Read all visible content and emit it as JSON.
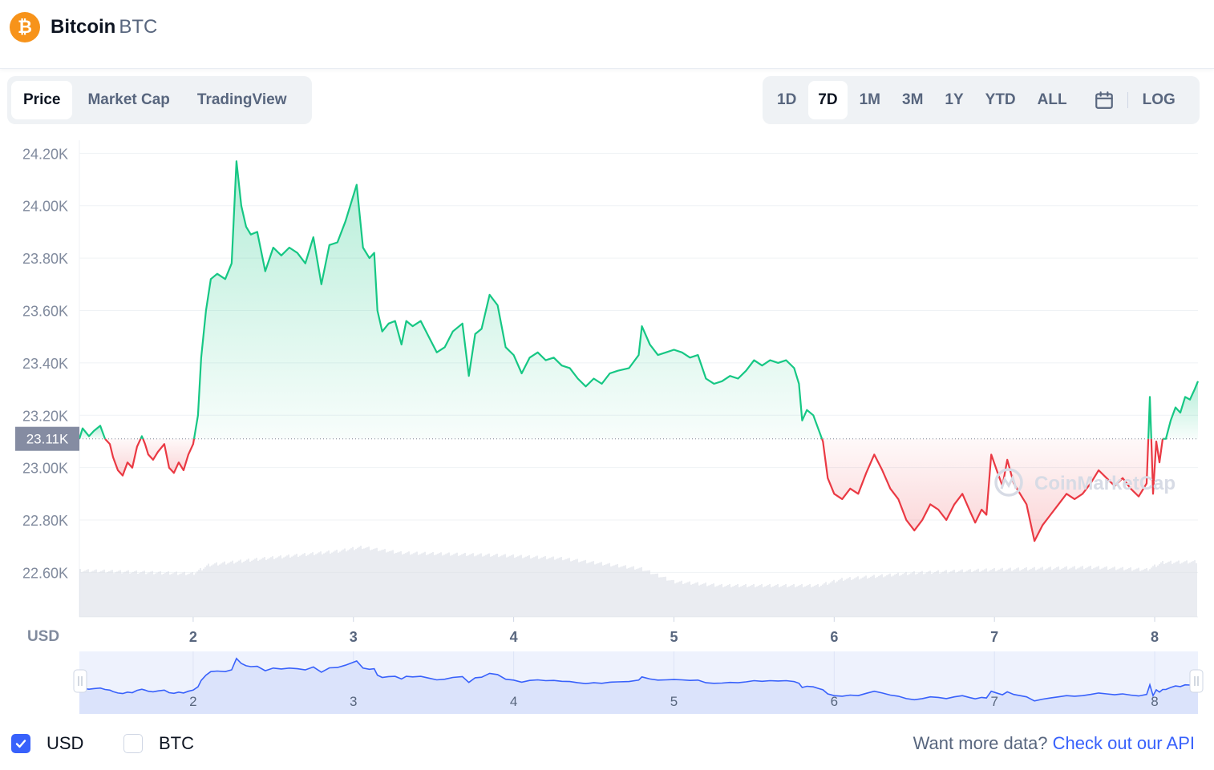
{
  "header": {
    "coin_name": "Bitcoin",
    "coin_symbol": "BTC",
    "logo_icon": "bitcoin-icon",
    "logo_color": "#f7931a"
  },
  "type_tabs": [
    {
      "label": "Price",
      "active": true
    },
    {
      "label": "Market Cap",
      "active": false
    },
    {
      "label": "TradingView",
      "active": false
    }
  ],
  "range_tabs": [
    {
      "label": "1D",
      "active": false
    },
    {
      "label": "7D",
      "active": true
    },
    {
      "label": "1M",
      "active": false
    },
    {
      "label": "3M",
      "active": false
    },
    {
      "label": "1Y",
      "active": false
    },
    {
      "label": "YTD",
      "active": false
    },
    {
      "label": "ALL",
      "active": false
    }
  ],
  "log_label": "LOG",
  "calendar_icon": "calendar-icon",
  "footer": {
    "usd_label": "USD",
    "usd_checked": true,
    "btc_label": "BTC",
    "btc_checked": false,
    "api_prompt": "Want more data?",
    "api_link": "Check out our API"
  },
  "colors": {
    "up": "#16c784",
    "down": "#ea3943",
    "accent": "#3861fb",
    "axis_text": "#808a9d"
  },
  "chart_data": {
    "type": "line",
    "currency_label": "USD",
    "watermark": "CoinMarketCap",
    "reference_value": 23110,
    "reference_label": "23.11K",
    "y_ticks": [
      "22.60K",
      "22.80K",
      "23.00K",
      "23.20K",
      "23.40K",
      "23.60K",
      "23.80K",
      "24.00K",
      "24.20K"
    ],
    "y_tick_values": [
      22600,
      22800,
      23000,
      23200,
      23400,
      23600,
      23800,
      24000,
      24200
    ],
    "ylim": [
      22430,
      24250
    ],
    "x_ticks": [
      "2",
      "3",
      "4",
      "5",
      "6",
      "7",
      "8"
    ],
    "x_tick_values": [
      2,
      3,
      4,
      5,
      6,
      7,
      8
    ],
    "xlim": [
      1.29,
      8.27
    ],
    "series": [
      {
        "values": [
          [
            1.29,
            23110
          ],
          [
            1.31,
            23150
          ],
          [
            1.35,
            23120
          ],
          [
            1.38,
            23140
          ],
          [
            1.42,
            23160
          ],
          [
            1.45,
            23110
          ],
          [
            1.48,
            23090
          ],
          [
            1.5,
            23040
          ],
          [
            1.53,
            22990
          ],
          [
            1.56,
            22970
          ],
          [
            1.59,
            23020
          ],
          [
            1.62,
            23000
          ],
          [
            1.65,
            23080
          ],
          [
            1.68,
            23120
          ],
          [
            1.7,
            23090
          ],
          [
            1.72,
            23050
          ],
          [
            1.75,
            23030
          ],
          [
            1.78,
            23060
          ],
          [
            1.82,
            23090
          ],
          [
            1.85,
            23000
          ],
          [
            1.88,
            22980
          ],
          [
            1.91,
            23020
          ],
          [
            1.94,
            22990
          ],
          [
            1.97,
            23050
          ],
          [
            2.0,
            23090
          ],
          [
            2.03,
            23200
          ],
          [
            2.05,
            23420
          ],
          [
            2.08,
            23600
          ],
          [
            2.11,
            23720
          ],
          [
            2.15,
            23740
          ],
          [
            2.2,
            23720
          ],
          [
            2.24,
            23780
          ],
          [
            2.27,
            24170
          ],
          [
            2.3,
            24000
          ],
          [
            2.33,
            23920
          ],
          [
            2.36,
            23890
          ],
          [
            2.4,
            23900
          ],
          [
            2.45,
            23750
          ],
          [
            2.5,
            23840
          ],
          [
            2.55,
            23810
          ],
          [
            2.6,
            23840
          ],
          [
            2.65,
            23820
          ],
          [
            2.7,
            23780
          ],
          [
            2.75,
            23880
          ],
          [
            2.8,
            23700
          ],
          [
            2.85,
            23850
          ],
          [
            2.9,
            23860
          ],
          [
            2.95,
            23940
          ],
          [
            3.02,
            24080
          ],
          [
            3.06,
            23840
          ],
          [
            3.1,
            23800
          ],
          [
            3.13,
            23820
          ],
          [
            3.15,
            23600
          ],
          [
            3.18,
            23520
          ],
          [
            3.22,
            23550
          ],
          [
            3.26,
            23560
          ],
          [
            3.3,
            23470
          ],
          [
            3.33,
            23560
          ],
          [
            3.37,
            23540
          ],
          [
            3.42,
            23560
          ],
          [
            3.47,
            23500
          ],
          [
            3.52,
            23440
          ],
          [
            3.57,
            23460
          ],
          [
            3.62,
            23520
          ],
          [
            3.68,
            23550
          ],
          [
            3.72,
            23350
          ],
          [
            3.76,
            23510
          ],
          [
            3.8,
            23530
          ],
          [
            3.85,
            23660
          ],
          [
            3.9,
            23620
          ],
          [
            3.95,
            23460
          ],
          [
            4.0,
            23430
          ],
          [
            4.05,
            23360
          ],
          [
            4.1,
            23420
          ],
          [
            4.15,
            23440
          ],
          [
            4.2,
            23410
          ],
          [
            4.25,
            23420
          ],
          [
            4.3,
            23390
          ],
          [
            4.35,
            23380
          ],
          [
            4.4,
            23340
          ],
          [
            4.45,
            23310
          ],
          [
            4.5,
            23340
          ],
          [
            4.55,
            23320
          ],
          [
            4.6,
            23360
          ],
          [
            4.65,
            23370
          ],
          [
            4.72,
            23380
          ],
          [
            4.78,
            23430
          ],
          [
            4.8,
            23540
          ],
          [
            4.85,
            23470
          ],
          [
            4.9,
            23430
          ],
          [
            4.95,
            23440
          ],
          [
            5.0,
            23450
          ],
          [
            5.05,
            23440
          ],
          [
            5.1,
            23420
          ],
          [
            5.15,
            23430
          ],
          [
            5.2,
            23340
          ],
          [
            5.25,
            23320
          ],
          [
            5.3,
            23330
          ],
          [
            5.35,
            23350
          ],
          [
            5.4,
            23340
          ],
          [
            5.45,
            23370
          ],
          [
            5.5,
            23410
          ],
          [
            5.55,
            23390
          ],
          [
            5.6,
            23410
          ],
          [
            5.65,
            23400
          ],
          [
            5.7,
            23410
          ],
          [
            5.75,
            23380
          ],
          [
            5.78,
            23320
          ],
          [
            5.8,
            23180
          ],
          [
            5.83,
            23220
          ],
          [
            5.87,
            23200
          ],
          [
            5.9,
            23150
          ],
          [
            5.93,
            23100
          ],
          [
            5.96,
            22960
          ],
          [
            6.0,
            22900
          ],
          [
            6.05,
            22880
          ],
          [
            6.1,
            22920
          ],
          [
            6.15,
            22900
          ],
          [
            6.2,
            22980
          ],
          [
            6.25,
            23050
          ],
          [
            6.3,
            22990
          ],
          [
            6.35,
            22920
          ],
          [
            6.4,
            22880
          ],
          [
            6.45,
            22800
          ],
          [
            6.5,
            22760
          ],
          [
            6.55,
            22800
          ],
          [
            6.6,
            22860
          ],
          [
            6.65,
            22840
          ],
          [
            6.7,
            22800
          ],
          [
            6.75,
            22860
          ],
          [
            6.8,
            22900
          ],
          [
            6.85,
            22830
          ],
          [
            6.88,
            22790
          ],
          [
            6.92,
            22840
          ],
          [
            6.95,
            22820
          ],
          [
            6.98,
            23050
          ],
          [
            7.02,
            22980
          ],
          [
            7.05,
            22930
          ],
          [
            7.08,
            23030
          ],
          [
            7.12,
            22940
          ],
          [
            7.15,
            22910
          ],
          [
            7.2,
            22860
          ],
          [
            7.25,
            22720
          ],
          [
            7.3,
            22780
          ],
          [
            7.35,
            22820
          ],
          [
            7.4,
            22860
          ],
          [
            7.45,
            22900
          ],
          [
            7.5,
            22880
          ],
          [
            7.55,
            22900
          ],
          [
            7.6,
            22940
          ],
          [
            7.65,
            22990
          ],
          [
            7.7,
            22960
          ],
          [
            7.75,
            22930
          ],
          [
            7.8,
            22960
          ],
          [
            7.85,
            22920
          ],
          [
            7.9,
            22890
          ],
          [
            7.95,
            22940
          ],
          [
            7.97,
            23270
          ],
          [
            7.99,
            22900
          ],
          [
            8.01,
            23100
          ],
          [
            8.03,
            23020
          ],
          [
            8.05,
            23110
          ],
          [
            8.07,
            23110
          ],
          [
            8.1,
            23180
          ],
          [
            8.13,
            23230
          ],
          [
            8.16,
            23210
          ],
          [
            8.19,
            23270
          ],
          [
            8.22,
            23260
          ],
          [
            8.25,
            23300
          ],
          [
            8.27,
            23330
          ]
        ]
      }
    ]
  }
}
